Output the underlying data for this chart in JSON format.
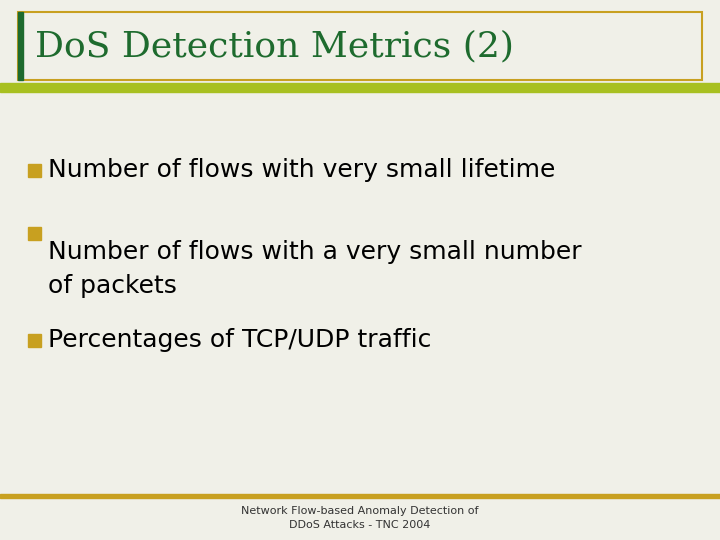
{
  "title": "DoS Detection Metrics (2)",
  "title_color": "#1e6b2e",
  "title_fontsize": 26,
  "bullet_color": "#c8a020",
  "bullet_text_color": "#000000",
  "bullet_fontsize": 18,
  "bullets": [
    "Number of flows with very small lifetime",
    "Number of flows with a very small number\nof packets",
    "Percentages of TCP/UDP traffic"
  ],
  "footer_line1": "Network Flow-based Anomaly Detection of",
  "footer_line2": "DDoS Attacks - TNC 2004",
  "footer_fontsize": 8,
  "footer_color": "#333333",
  "bg_color": "#f0f0e8",
  "title_border_color": "#c8a020",
  "separator_line_color": "#a8c020",
  "bottom_line_color": "#c8a020",
  "left_bar_color": "#c8a020",
  "title_left_bar_color": "#1e6b2e"
}
